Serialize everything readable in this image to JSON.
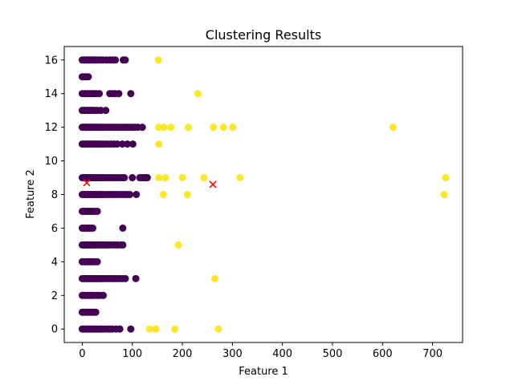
{
  "chart_data": {
    "type": "scatter",
    "title": "Clustering Results",
    "xlabel": "Feature 1",
    "ylabel": "Feature 2",
    "xlim": [
      -36,
      760
    ],
    "ylim": [
      -0.8,
      16.8
    ],
    "xticks": [
      0,
      100,
      200,
      300,
      400,
      500,
      600,
      700
    ],
    "yticks": [
      0,
      2,
      4,
      6,
      8,
      10,
      12,
      14,
      16
    ],
    "colors": {
      "cluster_0": "#440154",
      "cluster_1": "#fde725",
      "centroid": "#ff0000"
    },
    "series": [
      {
        "name": "Cluster 0",
        "color": "#440154",
        "points": [
          [
            0,
            0
          ],
          [
            3,
            0
          ],
          [
            6,
            0
          ],
          [
            9,
            0
          ],
          [
            12,
            0
          ],
          [
            15,
            0
          ],
          [
            18,
            0
          ],
          [
            21,
            0
          ],
          [
            24,
            0
          ],
          [
            27,
            0
          ],
          [
            30,
            0
          ],
          [
            33,
            0
          ],
          [
            37,
            0
          ],
          [
            41,
            0
          ],
          [
            45,
            0
          ],
          [
            50,
            0
          ],
          [
            55,
            0
          ],
          [
            60,
            0
          ],
          [
            68,
            0
          ],
          [
            75,
            0
          ],
          [
            97,
            0
          ],
          [
            0,
            1
          ],
          [
            3,
            1
          ],
          [
            6,
            1
          ],
          [
            10,
            1
          ],
          [
            14,
            1
          ],
          [
            18,
            1
          ],
          [
            22,
            1
          ],
          [
            27,
            1
          ],
          [
            0,
            2
          ],
          [
            4,
            2
          ],
          [
            8,
            2
          ],
          [
            12,
            2
          ],
          [
            16,
            2
          ],
          [
            20,
            2
          ],
          [
            24,
            2
          ],
          [
            30,
            2
          ],
          [
            35,
            2
          ],
          [
            42,
            2
          ],
          [
            0,
            3
          ],
          [
            3,
            3
          ],
          [
            6,
            3
          ],
          [
            9,
            3
          ],
          [
            12,
            3
          ],
          [
            15,
            3
          ],
          [
            18,
            3
          ],
          [
            21,
            3
          ],
          [
            24,
            3
          ],
          [
            27,
            3
          ],
          [
            30,
            3
          ],
          [
            33,
            3
          ],
          [
            37,
            3
          ],
          [
            41,
            3
          ],
          [
            45,
            3
          ],
          [
            50,
            3
          ],
          [
            55,
            3
          ],
          [
            60,
            3
          ],
          [
            65,
            3
          ],
          [
            70,
            3
          ],
          [
            75,
            3
          ],
          [
            80,
            3
          ],
          [
            86,
            3
          ],
          [
            107,
            3
          ],
          [
            0,
            4
          ],
          [
            4,
            4
          ],
          [
            8,
            4
          ],
          [
            12,
            4
          ],
          [
            16,
            4
          ],
          [
            20,
            4
          ],
          [
            25,
            4
          ],
          [
            30,
            4
          ],
          [
            0,
            5
          ],
          [
            3,
            5
          ],
          [
            6,
            5
          ],
          [
            9,
            5
          ],
          [
            12,
            5
          ],
          [
            15,
            5
          ],
          [
            18,
            5
          ],
          [
            21,
            5
          ],
          [
            25,
            5
          ],
          [
            29,
            5
          ],
          [
            33,
            5
          ],
          [
            37,
            5
          ],
          [
            42,
            5
          ],
          [
            47,
            5
          ],
          [
            52,
            5
          ],
          [
            58,
            5
          ],
          [
            64,
            5
          ],
          [
            70,
            5
          ],
          [
            77,
            5
          ],
          [
            81,
            5
          ],
          [
            0,
            6
          ],
          [
            3,
            6
          ],
          [
            6,
            6
          ],
          [
            9,
            6
          ],
          [
            12,
            6
          ],
          [
            15,
            6
          ],
          [
            18,
            6
          ],
          [
            21,
            6
          ],
          [
            81,
            6
          ],
          [
            0,
            7
          ],
          [
            3,
            7
          ],
          [
            6,
            7
          ],
          [
            9,
            7
          ],
          [
            12,
            7
          ],
          [
            15,
            7
          ],
          [
            18,
            7
          ],
          [
            21,
            7
          ],
          [
            25,
            7
          ],
          [
            30,
            7
          ],
          [
            0,
            8
          ],
          [
            3,
            8
          ],
          [
            6,
            8
          ],
          [
            9,
            8
          ],
          [
            12,
            8
          ],
          [
            15,
            8
          ],
          [
            18,
            8
          ],
          [
            21,
            8
          ],
          [
            24,
            8
          ],
          [
            27,
            8
          ],
          [
            30,
            8
          ],
          [
            33,
            8
          ],
          [
            37,
            8
          ],
          [
            41,
            8
          ],
          [
            45,
            8
          ],
          [
            50,
            8
          ],
          [
            55,
            8
          ],
          [
            60,
            8
          ],
          [
            65,
            8
          ],
          [
            70,
            8
          ],
          [
            75,
            8
          ],
          [
            80,
            8
          ],
          [
            85,
            8
          ],
          [
            90,
            8
          ],
          [
            95,
            8
          ],
          [
            108,
            8
          ],
          [
            0,
            9
          ],
          [
            3,
            9
          ],
          [
            6,
            9
          ],
          [
            9,
            9
          ],
          [
            12,
            9
          ],
          [
            15,
            9
          ],
          [
            18,
            9
          ],
          [
            21,
            9
          ],
          [
            24,
            9
          ],
          [
            27,
            9
          ],
          [
            30,
            9
          ],
          [
            33,
            9
          ],
          [
            37,
            9
          ],
          [
            41,
            9
          ],
          [
            45,
            9
          ],
          [
            50,
            9
          ],
          [
            55,
            9
          ],
          [
            60,
            9
          ],
          [
            65,
            9
          ],
          [
            70,
            9
          ],
          [
            75,
            9
          ],
          [
            80,
            9
          ],
          [
            84,
            9
          ],
          [
            100,
            9
          ],
          [
            115,
            9
          ],
          [
            119,
            9
          ],
          [
            123,
            9
          ],
          [
            127,
            9
          ],
          [
            130,
            9
          ],
          [
            0,
            11
          ],
          [
            3,
            11
          ],
          [
            6,
            11
          ],
          [
            9,
            11
          ],
          [
            12,
            11
          ],
          [
            15,
            11
          ],
          [
            18,
            11
          ],
          [
            21,
            11
          ],
          [
            24,
            11
          ],
          [
            27,
            11
          ],
          [
            30,
            11
          ],
          [
            33,
            11
          ],
          [
            37,
            11
          ],
          [
            41,
            11
          ],
          [
            46,
            11
          ],
          [
            52,
            11
          ],
          [
            58,
            11
          ],
          [
            64,
            11
          ],
          [
            70,
            11
          ],
          [
            80,
            11
          ],
          [
            90,
            11
          ],
          [
            101,
            11
          ],
          [
            0,
            12
          ],
          [
            3,
            12
          ],
          [
            6,
            12
          ],
          [
            9,
            12
          ],
          [
            12,
            12
          ],
          [
            15,
            12
          ],
          [
            18,
            12
          ],
          [
            21,
            12
          ],
          [
            24,
            12
          ],
          [
            27,
            12
          ],
          [
            30,
            12
          ],
          [
            33,
            12
          ],
          [
            37,
            12
          ],
          [
            41,
            12
          ],
          [
            45,
            12
          ],
          [
            50,
            12
          ],
          [
            55,
            12
          ],
          [
            60,
            12
          ],
          [
            65,
            12
          ],
          [
            70,
            12
          ],
          [
            75,
            12
          ],
          [
            80,
            12
          ],
          [
            85,
            12
          ],
          [
            90,
            12
          ],
          [
            95,
            12
          ],
          [
            100,
            12
          ],
          [
            105,
            12
          ],
          [
            111,
            12
          ],
          [
            120,
            12
          ],
          [
            0,
            13
          ],
          [
            3,
            13
          ],
          [
            6,
            13
          ],
          [
            9,
            13
          ],
          [
            12,
            13
          ],
          [
            15,
            13
          ],
          [
            18,
            13
          ],
          [
            21,
            13
          ],
          [
            25,
            13
          ],
          [
            30,
            13
          ],
          [
            37,
            13
          ],
          [
            47,
            13
          ],
          [
            0,
            14
          ],
          [
            4,
            14
          ],
          [
            8,
            14
          ],
          [
            12,
            14
          ],
          [
            16,
            14
          ],
          [
            20,
            14
          ],
          [
            24,
            14
          ],
          [
            28,
            14
          ],
          [
            34,
            14
          ],
          [
            55,
            14
          ],
          [
            61,
            14
          ],
          [
            66,
            14
          ],
          [
            73,
            14
          ],
          [
            97,
            14
          ],
          [
            0,
            15
          ],
          [
            3,
            15
          ],
          [
            6,
            15
          ],
          [
            9,
            15
          ],
          [
            12,
            15
          ],
          [
            0,
            16
          ],
          [
            3,
            16
          ],
          [
            6,
            16
          ],
          [
            9,
            16
          ],
          [
            12,
            16
          ],
          [
            15,
            16
          ],
          [
            18,
            16
          ],
          [
            21,
            16
          ],
          [
            24,
            16
          ],
          [
            27,
            16
          ],
          [
            30,
            16
          ],
          [
            36,
            16
          ],
          [
            41,
            16
          ],
          [
            48,
            16
          ],
          [
            55,
            16
          ],
          [
            61,
            16
          ],
          [
            66,
            16
          ],
          [
            82,
            16
          ],
          [
            86,
            16
          ]
        ]
      },
      {
        "name": "Cluster 1",
        "color": "#fde725",
        "points": [
          [
            135,
            0
          ],
          [
            147,
            0
          ],
          [
            185,
            0
          ],
          [
            272,
            0
          ],
          [
            265,
            3
          ],
          [
            192,
            5
          ],
          [
            162,
            8
          ],
          [
            210,
            8
          ],
          [
            723,
            8
          ],
          [
            153,
            9
          ],
          [
            166,
            9
          ],
          [
            200,
            9
          ],
          [
            243,
            9
          ],
          [
            315,
            9
          ],
          [
            726,
            9
          ],
          [
            153,
            11
          ],
          [
            153,
            12
          ],
          [
            163,
            12
          ],
          [
            177,
            12
          ],
          [
            212,
            12
          ],
          [
            262,
            12
          ],
          [
            282,
            12
          ],
          [
            301,
            12
          ],
          [
            621,
            12
          ],
          [
            231,
            14
          ],
          [
            152,
            16
          ]
        ]
      }
    ],
    "centroids": [
      [
        9,
        8.7
      ],
      [
        261,
        8.6
      ]
    ]
  }
}
